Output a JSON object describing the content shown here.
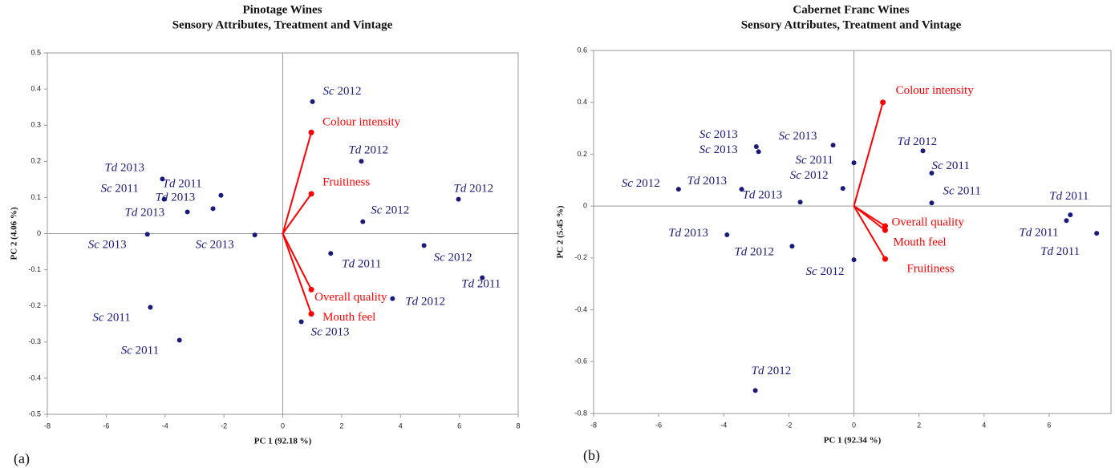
{
  "chart_data": [
    {
      "type": "scatter",
      "title": "Pinotage Wines",
      "subtitle": "Sensory Attributes, Treatment and Vintage",
      "xlabel": "PC 1 (92.18 %)",
      "ylabel": "PC 2 (4.06 %)",
      "panel_label": "(a)",
      "xlim": [
        -8,
        8
      ],
      "ylim": [
        -0.5,
        0.5
      ],
      "xticks": [
        -8,
        -6,
        -4,
        -2,
        0,
        2,
        4,
        6,
        8
      ],
      "yticks": [
        -0.5,
        -0.4,
        -0.3,
        -0.2,
        -0.1,
        0,
        0.1,
        0.2,
        0.3,
        0.4,
        0.5
      ],
      "color": "#1a1a7a",
      "x": [
        1.01,
        2.67,
        2.72,
        5.97,
        4.8,
        1.63,
        6.78,
        3.73,
        0.63,
        -0.95,
        -4.09,
        -4.03,
        -2.1,
        -3.24,
        -2.37,
        -4.6,
        -4.5,
        -3.51
      ],
      "values": [
        0.365,
        0.2,
        0.033,
        0.095,
        -0.033,
        -0.055,
        -0.122,
        -0.18,
        -0.244,
        -0.004,
        0.151,
        0.095,
        0.106,
        0.06,
        0.069,
        -0.002,
        -0.204,
        -0.295
      ],
      "point_labels": [
        "Sc 2012",
        "Td 2012",
        "Sc 2012",
        "Td 2012",
        "Sc 2012",
        "Td 2011",
        "Td 2011",
        "Td 2012",
        "Sc 2013",
        "Sc 2013",
        "Td 2013",
        "Td 2011",
        "Sc 2011",
        "Td 2013",
        "Td 2013",
        "Sc 2013",
        "Sc 2011",
        "Sc 2011"
      ],
      "loadings": {
        "color": "#ff0000",
        "labels": [
          "Colour intensity",
          "Fruitiness",
          "Overall quality",
          "Mouth feel"
        ],
        "x": [
          0.97,
          0.97,
          0.97,
          0.97
        ],
        "values": [
          0.28,
          0.11,
          -0.155,
          -0.222
        ]
      }
    },
    {
      "type": "scatter",
      "title": "Cabernet Franc Wines",
      "subtitle": "Sensory Attributes, Treatment and Vintage",
      "xlabel": "PC 1 (92.34 %)",
      "ylabel": "PC 2 (5.45 %)",
      "panel_label": "(b)",
      "xlim": [
        -8,
        7.9
      ],
      "ylim": [
        -0.8,
        0.6
      ],
      "xticks": [
        -8,
        -6,
        -4,
        -2,
        0,
        2,
        4,
        6
      ],
      "yticks": [
        -0.8,
        -0.6,
        -0.4,
        -0.2,
        0,
        0.2,
        0.4,
        0.6
      ],
      "color": "#1a1a7a",
      "x": [
        2.12,
        2.39,
        2.39,
        6.65,
        6.53,
        7.46,
        0,
        -0.34,
        -0.64,
        0,
        -1.65,
        -1.9,
        -3.0,
        -2.93,
        -3.45,
        -5.39,
        -3.9,
        -3.03
      ],
      "values": [
        0.213,
        0.127,
        0.012,
        -0.034,
        -0.056,
        -0.105,
        0.167,
        0.068,
        0.235,
        -0.207,
        0.015,
        -0.155,
        0.229,
        0.21,
        0.065,
        0.065,
        -0.111,
        -0.711
      ],
      "point_labels": [
        "Td 2012",
        "Sc 2011",
        "Sc 2011",
        "Td 2011",
        "Td 2011",
        "Td 2011",
        "Sc 2011",
        "Sc 2012",
        "Sc 2013",
        "Sc 2012",
        "Td 2013",
        "Td 2012",
        "Sc 2013",
        "Sc 2013",
        "Td 2013",
        "Sc 2012",
        "Td 2013",
        "Td 2012"
      ],
      "loadings": {
        "color": "#ff0000",
        "labels": [
          "Colour intensity",
          "Overall quality",
          "Mouth feel",
          "Fruitiness"
        ],
        "x": [
          0.89,
          0.96,
          0.96,
          0.96
        ],
        "values": [
          0.4,
          -0.077,
          -0.093,
          -0.204
        ]
      }
    }
  ]
}
